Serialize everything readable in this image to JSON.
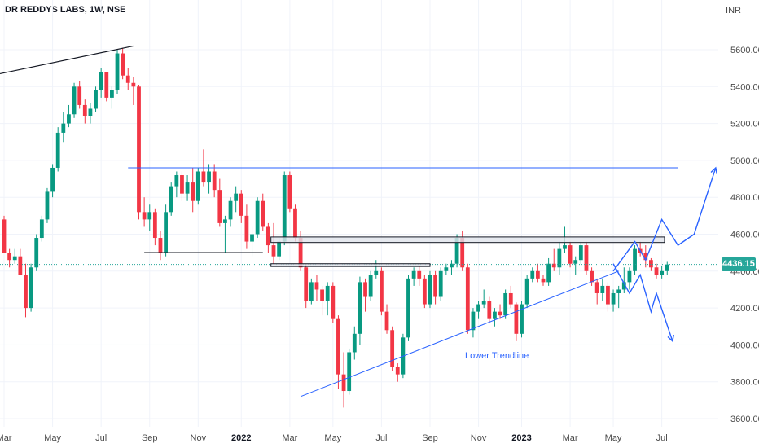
{
  "title": "DR REDDYS LABS, 1W, NSE",
  "currency": "INR",
  "last_price": 4436.15,
  "last_price_label": "4436.15",
  "annotation": "Lower Trendline",
  "colors": {
    "up": "#089981",
    "down": "#f23645",
    "trend": "#2962ff",
    "price": "#26a69a",
    "dark": "#131722"
  },
  "chart_data": {
    "type": "candlestick",
    "ylim": [
      3600,
      5800
    ],
    "yticks": [
      3600,
      3800,
      4000,
      4200,
      4400,
      4600,
      4800,
      5000,
      5200,
      5400,
      5600
    ],
    "ytick_labels": [
      "3600.00",
      "3800.00",
      "4000.00",
      "4200.00",
      "4400.00",
      "4600.00",
      "4800.00",
      "5000.00",
      "5200.00",
      "5400.00",
      "5600.00"
    ],
    "x_labels": [
      {
        "label": "Mar",
        "week": 0
      },
      {
        "label": "May",
        "week": 9
      },
      {
        "label": "Jul",
        "week": 18
      },
      {
        "label": "Sep",
        "week": 27
      },
      {
        "label": "Nov",
        "week": 36
      },
      {
        "label": "2022",
        "week": 44,
        "bold": true
      },
      {
        "label": "Mar",
        "week": 53
      },
      {
        "label": "May",
        "week": 61
      },
      {
        "label": "Jul",
        "week": 70
      },
      {
        "label": "Sep",
        "week": 79
      },
      {
        "label": "Nov",
        "week": 88
      },
      {
        "label": "2023",
        "week": 96,
        "bold": true
      },
      {
        "label": "Mar",
        "week": 105
      },
      {
        "label": "May",
        "week": 113
      },
      {
        "label": "Jul",
        "week": 122
      }
    ],
    "candles": [
      [
        4680,
        4700,
        4500,
        4500
      ],
      [
        4500,
        4520,
        4420,
        4460
      ],
      [
        4460,
        4520,
        4440,
        4480
      ],
      [
        4480,
        4520,
        4380,
        4380
      ],
      [
        4380,
        4440,
        4150,
        4200
      ],
      [
        4200,
        4440,
        4180,
        4420
      ],
      [
        4420,
        4600,
        4400,
        4580
      ],
      [
        4580,
        4700,
        4560,
        4680
      ],
      [
        4680,
        4850,
        4660,
        4830
      ],
      [
        4830,
        4980,
        4800,
        4960
      ],
      [
        4960,
        5180,
        4940,
        5150
      ],
      [
        5150,
        5260,
        5100,
        5200
      ],
      [
        5200,
        5300,
        5180,
        5250
      ],
      [
        5250,
        5420,
        5230,
        5400
      ],
      [
        5400,
        5430,
        5280,
        5300
      ],
      [
        5300,
        5330,
        5200,
        5240
      ],
      [
        5240,
        5310,
        5200,
        5280
      ],
      [
        5280,
        5400,
        5260,
        5380
      ],
      [
        5380,
        5500,
        5340,
        5480
      ],
      [
        5480,
        5460,
        5320,
        5340
      ],
      [
        5340,
        5400,
        5280,
        5380
      ],
      [
        5380,
        5600,
        5360,
        5580
      ],
      [
        5580,
        5610,
        5440,
        5460
      ],
      [
        5460,
        5500,
        5380,
        5420
      ],
      [
        5420,
        5450,
        5300,
        5400
      ],
      [
        5400,
        5410,
        4680,
        4720
      ],
      [
        4720,
        4800,
        4640,
        4680
      ],
      [
        4680,
        4760,
        4620,
        4720
      ],
      [
        4720,
        4740,
        4540,
        4580
      ],
      [
        4580,
        4620,
        4460,
        4500
      ],
      [
        4500,
        4760,
        4480,
        4720
      ],
      [
        4720,
        4880,
        4700,
        4860
      ],
      [
        4860,
        4940,
        4800,
        4920
      ],
      [
        4920,
        4940,
        4780,
        4820
      ],
      [
        4820,
        4920,
        4780,
        4880
      ],
      [
        4880,
        4960,
        4720,
        4780
      ],
      [
        4780,
        4960,
        4760,
        4940
      ],
      [
        4940,
        5060,
        4860,
        4880
      ],
      [
        4880,
        4980,
        4820,
        4940
      ],
      [
        4940,
        4980,
        4800,
        4840
      ],
      [
        4840,
        4900,
        4640,
        4660
      ],
      [
        4660,
        4700,
        4500,
        4680
      ],
      [
        4680,
        4800,
        4640,
        4780
      ],
      [
        4780,
        4860,
        4720,
        4820
      ],
      [
        4820,
        4840,
        4660,
        4700
      ],
      [
        4700,
        4760,
        4520,
        4560
      ],
      [
        4560,
        4640,
        4480,
        4600
      ],
      [
        4600,
        4800,
        4580,
        4780
      ],
      [
        4780,
        4820,
        4620,
        4640
      ],
      [
        4640,
        4660,
        4500,
        4540
      ],
      [
        4540,
        4660,
        4440,
        4480
      ],
      [
        4480,
        4580,
        4460,
        4560
      ],
      [
        4560,
        4940,
        4540,
        4920
      ],
      [
        4920,
        4940,
        4720,
        4740
      ],
      [
        4740,
        4760,
        4560,
        4580
      ],
      [
        4580,
        4620,
        4400,
        4420
      ],
      [
        4420,
        4440,
        4200,
        4240
      ],
      [
        4240,
        4360,
        4220,
        4340
      ],
      [
        4340,
        4380,
        4240,
        4300
      ],
      [
        4300,
        4320,
        4160,
        4240
      ],
      [
        4240,
        4340,
        4160,
        4320
      ],
      [
        4320,
        4340,
        4120,
        4140
      ],
      [
        4140,
        4160,
        3760,
        3840
      ],
      [
        3840,
        3960,
        3660,
        3750
      ],
      [
        3750,
        3980,
        3730,
        3960
      ],
      [
        3960,
        4100,
        3920,
        4060
      ],
      [
        4060,
        4370,
        4000,
        4340
      ],
      [
        4340,
        4360,
        4180,
        4260
      ],
      [
        4260,
        4400,
        4240,
        4380
      ],
      [
        4380,
        4460,
        4360,
        4400
      ],
      [
        4400,
        4420,
        4160,
        4180
      ],
      [
        4180,
        4220,
        4060,
        4080
      ],
      [
        4080,
        4100,
        3860,
        3880
      ],
      [
        3880,
        3900,
        3800,
        3840
      ],
      [
        3840,
        4060,
        3820,
        4040
      ],
      [
        4040,
        4380,
        4020,
        4360
      ],
      [
        4360,
        4420,
        4320,
        4400
      ],
      [
        4400,
        4430,
        4320,
        4360
      ],
      [
        4360,
        4380,
        4200,
        4220
      ],
      [
        4220,
        4400,
        4200,
        4380
      ],
      [
        4380,
        4400,
        4220,
        4260
      ],
      [
        4260,
        4420,
        4240,
        4400
      ],
      [
        4400,
        4440,
        4380,
        4420
      ],
      [
        4420,
        4460,
        4380,
        4440
      ],
      [
        4440,
        4600,
        4420,
        4580
      ],
      [
        4580,
        4620,
        4400,
        4420
      ],
      [
        4420,
        4440,
        4060,
        4080
      ],
      [
        4080,
        4200,
        4040,
        4180
      ],
      [
        4180,
        4240,
        4140,
        4220
      ],
      [
        4220,
        4300,
        4200,
        4240
      ],
      [
        4240,
        4260,
        4120,
        4140
      ],
      [
        4140,
        4200,
        4100,
        4180
      ],
      [
        4180,
        4220,
        4140,
        4160
      ],
      [
        4160,
        4300,
        4140,
        4280
      ],
      [
        4280,
        4320,
        4200,
        4220
      ],
      [
        4220,
        4230,
        4020,
        4060
      ],
      [
        4060,
        4240,
        4040,
        4220
      ],
      [
        4220,
        4380,
        4200,
        4360
      ],
      [
        4360,
        4420,
        4340,
        4400
      ],
      [
        4400,
        4440,
        4340,
        4360
      ],
      [
        4360,
        4380,
        4320,
        4340
      ],
      [
        4340,
        4470,
        4320,
        4440
      ],
      [
        4440,
        4520,
        4400,
        4420
      ],
      [
        4420,
        4560,
        4380,
        4520
      ],
      [
        4520,
        4640,
        4500,
        4540
      ],
      [
        4540,
        4560,
        4420,
        4440
      ],
      [
        4440,
        4480,
        4380,
        4460
      ],
      [
        4460,
        4560,
        4440,
        4540
      ],
      [
        4540,
        4560,
        4380,
        4400
      ],
      [
        4400,
        4420,
        4320,
        4340
      ],
      [
        4340,
        4360,
        4220,
        4280
      ],
      [
        4280,
        4360,
        4240,
        4320
      ],
      [
        4320,
        4340,
        4180,
        4220
      ],
      [
        4220,
        4300,
        4180,
        4280
      ],
      [
        4280,
        4320,
        4200,
        4300
      ],
      [
        4300,
        4420,
        4280,
        4340
      ],
      [
        4340,
        4420,
        4300,
        4400
      ],
      [
        4400,
        4540,
        4380,
        4520
      ],
      [
        4520,
        4560,
        4480,
        4500
      ],
      [
        4500,
        4540,
        4420,
        4460
      ],
      [
        4460,
        4470,
        4400,
        4420
      ],
      [
        4420,
        4440,
        4360,
        4380
      ],
      [
        4380,
        4430,
        4360,
        4400
      ],
      [
        4400,
        4450,
        4380,
        4436.15
      ]
    ]
  }
}
